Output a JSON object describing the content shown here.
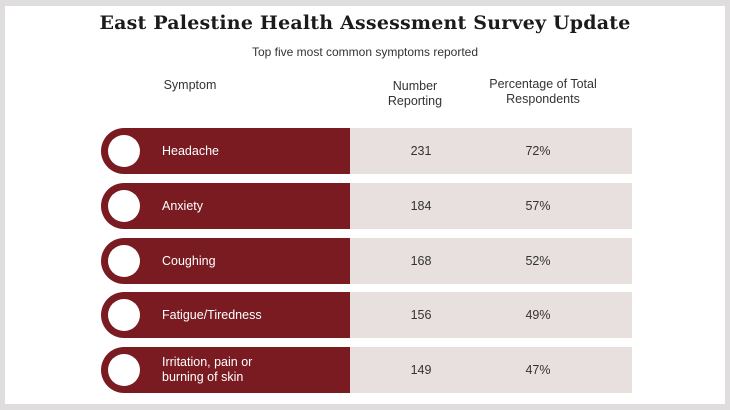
{
  "header": {
    "title": "East Palestine Health Assessment Survey Update",
    "subtitle": "Top five most common symptoms reported"
  },
  "columns": {
    "symptom": "Symptom",
    "number": "Number\nReporting",
    "percent": "Percentage of Total\nRespondents"
  },
  "colors": {
    "accent": "#7a1b22",
    "row_background": "#e8dfdf",
    "page_background": "#dfdddd"
  },
  "chart_data": {
    "type": "table",
    "title": "East Palestine Health Assessment Survey Update",
    "subtitle": "Top five most common symptoms reported",
    "columns": [
      "Symptom",
      "Number Reporting",
      "Percentage of Total Respondents"
    ],
    "rows": [
      {
        "symptom": "Headache",
        "count": "231",
        "percent": "72%"
      },
      {
        "symptom": "Anxiety",
        "count": "184",
        "percent": "57%"
      },
      {
        "symptom": "Coughing",
        "count": "168",
        "percent": "52%"
      },
      {
        "symptom": "Fatigue/Tiredness",
        "count": "156",
        "percent": "49%"
      },
      {
        "symptom": "Irritation, pain or\nburning of skin",
        "count": "149",
        "percent": "47%"
      }
    ]
  }
}
